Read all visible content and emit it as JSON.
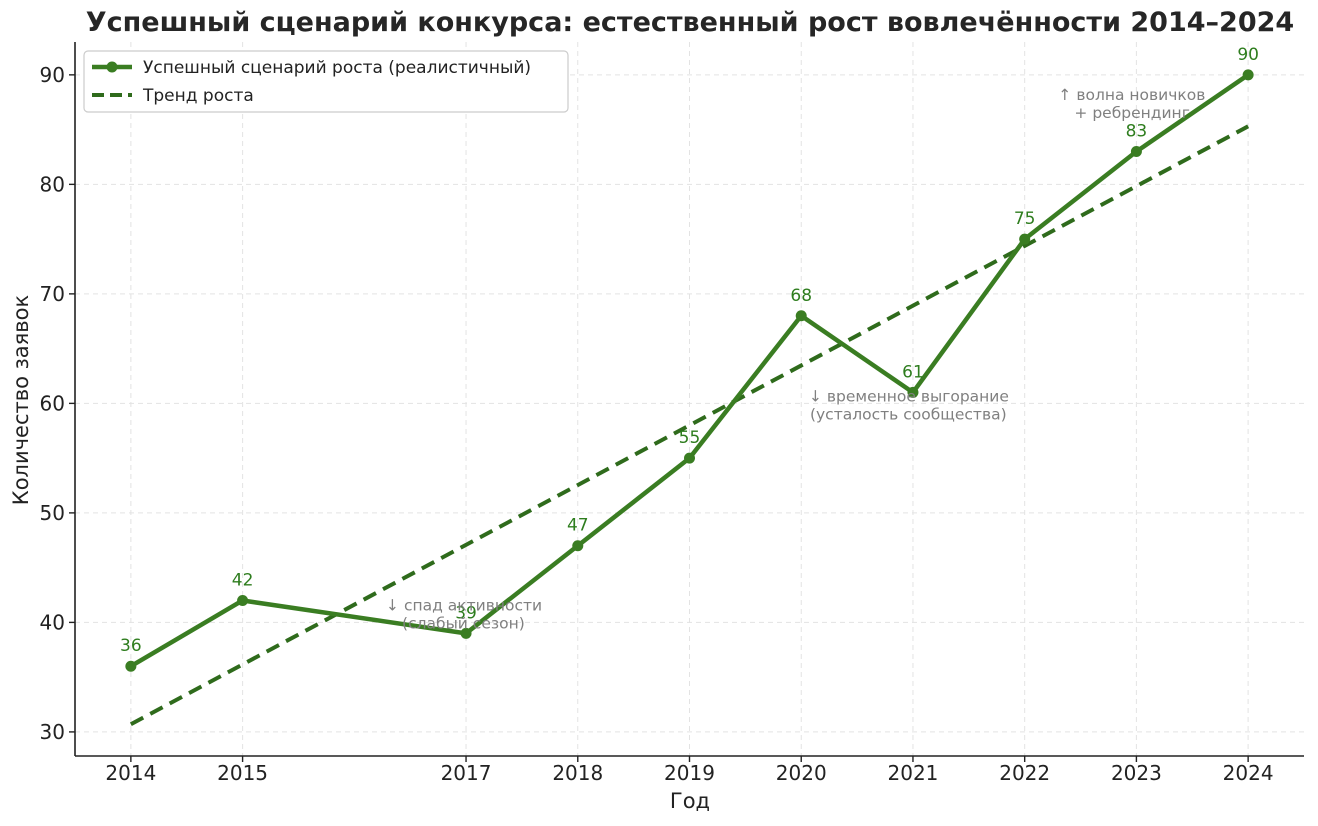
{
  "chart_data": {
    "type": "line",
    "title": "Успешный сценарий конкурса: естественный рост вовлечённости 2014–2024",
    "xlabel": "Год",
    "ylabel": "Количество заявок",
    "x": [
      2014,
      2015,
      2017,
      2018,
      2019,
      2020,
      2021,
      2022,
      2023,
      2024
    ],
    "x_tick_labels": [
      "2014",
      "2015",
      "2017",
      "2018",
      "2019",
      "2020",
      "2021",
      "2022",
      "2023",
      "2024"
    ],
    "y_ticks": [
      30,
      40,
      50,
      60,
      70,
      80,
      90
    ],
    "xlim": [
      2013.5,
      2024.5
    ],
    "ylim": [
      27.8,
      93
    ],
    "grid": true,
    "legend_position": "top-left",
    "series": [
      {
        "name": "Успешный сценарий роста (реалистичный)",
        "style": "solid-markers",
        "color": "#3a7d22",
        "values": [
          36,
          42,
          39,
          47,
          55,
          68,
          61,
          75,
          83,
          90
        ]
      },
      {
        "name": "Тренд роста",
        "style": "dashed",
        "color": "#2f6b1c",
        "points": [
          [
            2014,
            30.7
          ],
          [
            2024,
            85.3
          ]
        ]
      }
    ],
    "annotations": [
      {
        "x": 2017,
        "y": 40,
        "lines": [
          "↓ спад активности",
          "(слабый сезон)"
        ]
      },
      {
        "x": 2021,
        "y": 60,
        "lines": [
          "↓ временное выгорание",
          "(усталость сообщества)"
        ]
      },
      {
        "x": 2023,
        "y": 88,
        "lines": [
          "↑ волна новичков",
          "+ ребрендинг"
        ]
      }
    ]
  }
}
